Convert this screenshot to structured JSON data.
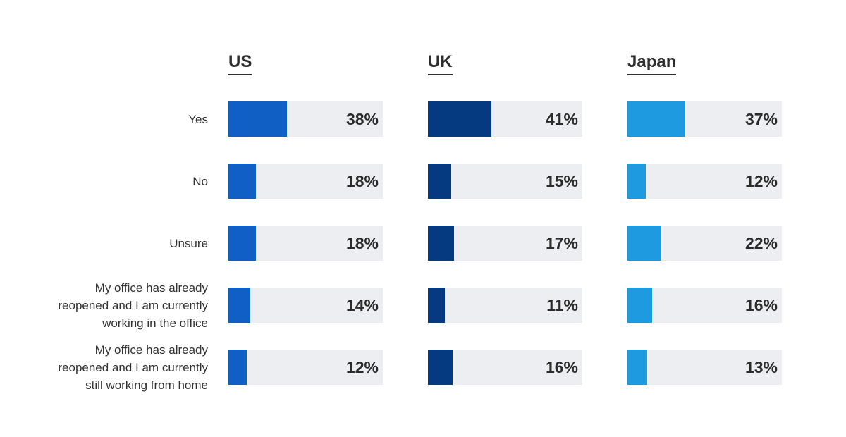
{
  "chart_data": {
    "type": "bar",
    "orientation": "horizontal",
    "categories": [
      "Yes",
      "No",
      "Unsure",
      "My office has already reopened and I am currently working in the office",
      "My office has already reopened and I am currently still working from home"
    ],
    "category_lines": [
      [
        "Yes"
      ],
      [
        "No"
      ],
      [
        "Unsure"
      ],
      [
        "My office has already",
        "reopened and I am currently",
        "working in the office"
      ],
      [
        "My office has already",
        "reopened and I am currently",
        "still working from home"
      ]
    ],
    "series": [
      {
        "name": "US",
        "color": "#0f5fc4",
        "values": [
          38,
          18,
          18,
          14,
          12
        ]
      },
      {
        "name": "UK",
        "color": "#053a80",
        "values": [
          41,
          15,
          17,
          11,
          16
        ]
      },
      {
        "name": "Japan",
        "color": "#1e9be0",
        "values": [
          37,
          12,
          22,
          16,
          13
        ]
      }
    ],
    "value_suffix": "%",
    "xlim": [
      0,
      100
    ],
    "track_color": "#edeef2",
    "grid": false,
    "legend": "none"
  }
}
